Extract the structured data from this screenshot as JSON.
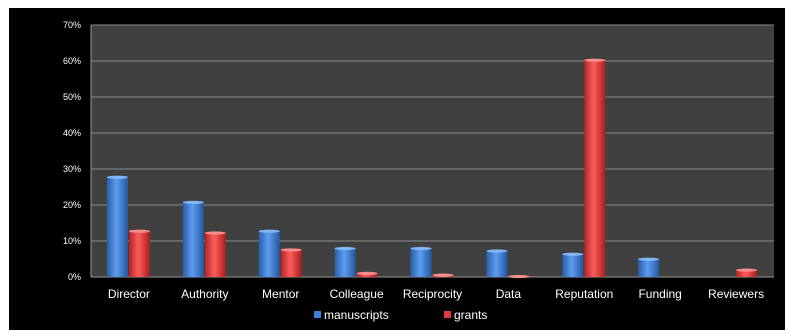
{
  "chart_data": {
    "type": "bar",
    "categories": [
      "Director",
      "Authority",
      "Mentor",
      "Colleague",
      "Reciprocity",
      "Data",
      "Reputation",
      "Funding",
      "Reviewers"
    ],
    "series": [
      {
        "name": "manuscripts",
        "values": [
          28,
          21,
          13,
          8.2,
          8.2,
          7.5,
          6.6,
          5.2,
          0
        ]
      },
      {
        "name": "grants",
        "values": [
          13,
          12.5,
          7.8,
          1.3,
          0.8,
          0.4,
          60.5,
          0,
          2.2
        ]
      }
    ],
    "ylim": [
      0,
      70
    ],
    "yticks": [
      "0%",
      "10%",
      "20%",
      "30%",
      "40%",
      "50%",
      "60%",
      "70%"
    ],
    "grid": true,
    "legend_position": "bottom",
    "colors": {
      "background": "#000000",
      "plot_area": "#404040",
      "manuscripts": "#3f7fd6",
      "grants": "#e03a3a"
    }
  }
}
